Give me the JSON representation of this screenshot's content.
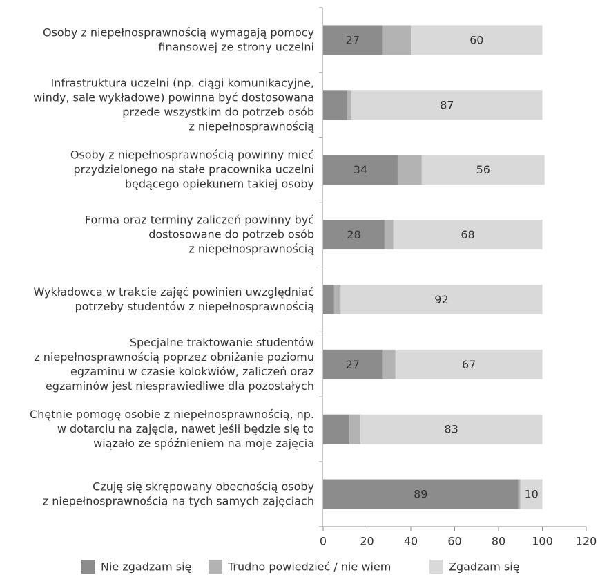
{
  "chart_data": {
    "type": "stacked_bar_horizontal",
    "categories": [
      "Osoby z niepełnosprawnością wymagają pomocy\nfinansowej ze strony uczelni",
      "Infrastruktura uczelni (np. ciągi komunikacyjne,\nwindy, sale wykładowe) powinna być dostosowana\nprzede wszystkim do potrzeb osób\nz niepełnosprawnością",
      "Osoby z niepełnosprawnością powinny mieć\nprzydzielonego na stałe pracownika uczelni\nbędącego opiekunem takiej osoby",
      "Forma oraz terminy zaliczeń powinny być\ndostosowane do potrzeb osób\nz niepełnosprawnością",
      "Wykładowca w trakcie zajęć powinien uwzględniać\npotrzeby studentów z niepełnosprawnością",
      "Specjalne traktowanie studentów\nz niepełnosprawnością poprzez obniżanie poziomu\negzaminu w czasie kolokwiów, zaliczeń oraz\negzaminów jest niesprawiedliwe dla pozostałych",
      "Chętnie pomogę osobie z niepełnosprawnością, np.\nw dotarciu na zajęcia, nawet jeśli będzie się to\nwiązało ze spóźnieniem na moje zajęcia",
      "Czuję się skrępowany obecnością osoby\nz niepełnosprawnością na tych samych zajęciach"
    ],
    "series": [
      {
        "name": "Nie zgadzam się",
        "color": "#8c8c8c",
        "values": [
          27,
          11,
          34,
          28,
          5,
          27,
          12,
          89
        ],
        "value_labels": [
          "27",
          null,
          "34",
          "28",
          null,
          "27",
          null,
          "89"
        ]
      },
      {
        "name": "Trudno powiedzieć / nie wiem",
        "color": "#b3b3b3",
        "values": [
          13,
          2,
          11,
          4,
          3,
          6,
          5,
          1
        ],
        "value_labels": [
          null,
          null,
          null,
          null,
          null,
          null,
          null,
          null
        ]
      },
      {
        "name": "Zgadzam się",
        "color": "#d9d9d9",
        "values": [
          60,
          87,
          56,
          68,
          92,
          67,
          83,
          10
        ],
        "value_labels": [
          "60",
          "87",
          "56",
          "68",
          "92",
          "67",
          "83",
          "10"
        ]
      }
    ],
    "xlim": [
      0,
      120
    ],
    "xticks": [
      0,
      20,
      40,
      60,
      80,
      100,
      120
    ],
    "grid": false,
    "legend": "bottom"
  }
}
